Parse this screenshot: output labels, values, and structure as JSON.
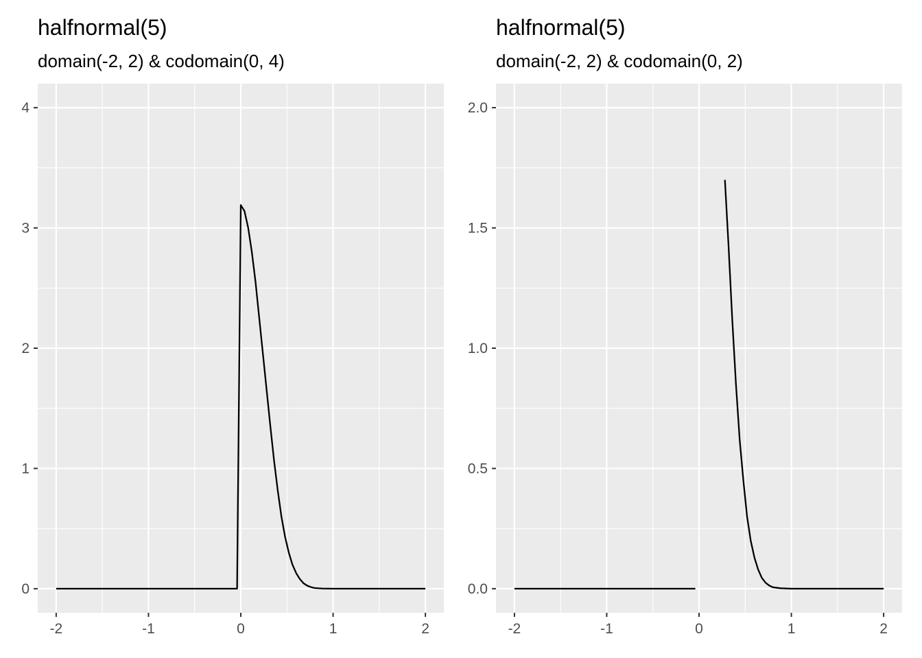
{
  "chart_data": [
    {
      "type": "line",
      "title": "halfnormal(5)",
      "subtitle": "domain(-2, 2) & codomain(0, 4)",
      "xlabel": "",
      "ylabel": "",
      "xlim": [
        -2.2,
        2.2
      ],
      "ylim": [
        -0.2,
        4.2
      ],
      "x_ticks": [
        -2,
        -1,
        0,
        1,
        2
      ],
      "x_tick_labels": [
        "-2",
        "-1",
        "0",
        "1",
        "2"
      ],
      "y_ticks": [
        0,
        1,
        2,
        3,
        4
      ],
      "y_tick_labels": [
        "0",
        "1",
        "2",
        "3",
        "4"
      ],
      "grid": true,
      "segments": [
        [
          [
            -2.0,
            0
          ],
          [
            -0.04,
            0
          ],
          [
            0.0,
            3.19
          ],
          [
            0.04,
            3.14
          ],
          [
            0.08,
            3.0
          ],
          [
            0.12,
            2.8
          ],
          [
            0.16,
            2.55
          ],
          [
            0.2,
            2.25
          ],
          [
            0.24,
            1.95
          ],
          [
            0.28,
            1.65
          ],
          [
            0.32,
            1.35
          ],
          [
            0.36,
            1.07
          ],
          [
            0.4,
            0.82
          ],
          [
            0.44,
            0.6
          ],
          [
            0.48,
            0.43
          ],
          [
            0.52,
            0.3
          ],
          [
            0.56,
            0.2
          ],
          [
            0.6,
            0.13
          ],
          [
            0.64,
            0.08
          ],
          [
            0.68,
            0.045
          ],
          [
            0.72,
            0.025
          ],
          [
            0.76,
            0.013
          ],
          [
            0.8,
            0.006
          ],
          [
            0.88,
            0.002
          ],
          [
            1.0,
            0.0
          ],
          [
            2.0,
            0.0
          ]
        ]
      ]
    },
    {
      "type": "line",
      "title": "halfnormal(5)",
      "subtitle": "domain(-2, 2) & codomain(0, 2)",
      "xlabel": "",
      "ylabel": "",
      "xlim": [
        -2.2,
        2.2
      ],
      "ylim": [
        -0.1,
        2.1
      ],
      "x_ticks": [
        -2,
        -1,
        0,
        1,
        2
      ],
      "x_tick_labels": [
        "-2",
        "-1",
        "0",
        "1",
        "2"
      ],
      "y_ticks": [
        0,
        0.5,
        1,
        1.5,
        2
      ],
      "y_tick_labels": [
        "0.0",
        "0.5",
        "1.0",
        "1.5",
        "2.0"
      ],
      "grid": true,
      "segments": [
        [
          [
            -2.0,
            0
          ],
          [
            -0.04,
            0
          ]
        ],
        [
          [
            0.28,
            1.7
          ],
          [
            0.32,
            1.42
          ],
          [
            0.36,
            1.12
          ],
          [
            0.4,
            0.85
          ],
          [
            0.44,
            0.62
          ],
          [
            0.48,
            0.45
          ],
          [
            0.52,
            0.3
          ],
          [
            0.56,
            0.2
          ],
          [
            0.6,
            0.13
          ],
          [
            0.64,
            0.08
          ],
          [
            0.68,
            0.045
          ],
          [
            0.72,
            0.025
          ],
          [
            0.76,
            0.013
          ],
          [
            0.8,
            0.006
          ],
          [
            0.88,
            0.002
          ],
          [
            1.0,
            0.0
          ],
          [
            2.0,
            0.0
          ]
        ]
      ]
    }
  ]
}
